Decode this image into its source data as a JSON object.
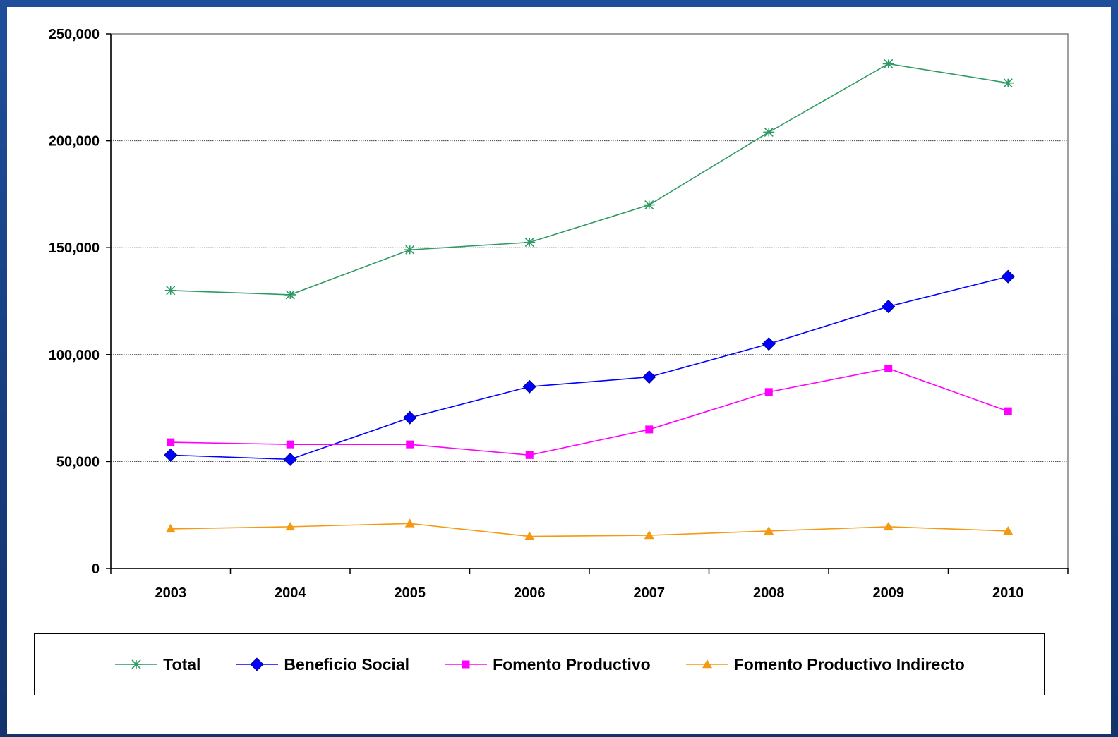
{
  "chart_data": {
    "type": "line",
    "title": "",
    "xlabel": "",
    "ylabel": "",
    "x": [
      "2003",
      "2004",
      "2005",
      "2006",
      "2007",
      "2008",
      "2009",
      "2010"
    ],
    "ylim": [
      0,
      250000
    ],
    "yticks": [
      0,
      50000,
      100000,
      150000,
      200000,
      250000
    ],
    "ytick_labels": [
      "0",
      "50,000",
      "100,000",
      "150,000",
      "200,000",
      "250,000"
    ],
    "grid": "horizontal",
    "legend_position": "bottom",
    "series": [
      {
        "name": "Total",
        "color": "#2e9a63",
        "marker": "asterisk",
        "values": [
          130000,
          128000,
          149000,
          152500,
          170000,
          204000,
          236000,
          227000
        ]
      },
      {
        "name": "Beneficio Social",
        "color": "#0000ff",
        "marker": "diamond",
        "values": [
          53000,
          51000,
          70500,
          85000,
          89500,
          105000,
          122500,
          136500
        ]
      },
      {
        "name": "Fomento Productivo",
        "color": "#ff00ff",
        "marker": "square",
        "values": [
          59000,
          58000,
          58000,
          53000,
          65000,
          82500,
          93500,
          73500
        ]
      },
      {
        "name": "Fomento Productivo Indirecto",
        "color": "#f39a11",
        "marker": "triangle",
        "values": [
          18500,
          19500,
          21000,
          15000,
          15500,
          17500,
          19500,
          17500
        ]
      }
    ]
  }
}
